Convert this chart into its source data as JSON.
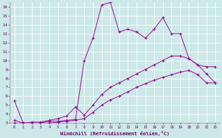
{
  "title": "",
  "xlabel": "Windchill (Refroidissement éolien,°C)",
  "background_color": "#cce8e8",
  "grid_color": "#ffffff",
  "line_color": "#990099",
  "tick_color": "#660066",
  "xlim": [
    -0.5,
    23.5
  ],
  "ylim": [
    3,
    16.5
  ],
  "yticks": [
    3,
    4,
    5,
    6,
    7,
    8,
    9,
    10,
    11,
    12,
    13,
    14,
    15,
    16
  ],
  "xticks": [
    0,
    1,
    2,
    3,
    4,
    5,
    6,
    7,
    8,
    9,
    10,
    11,
    12,
    13,
    14,
    15,
    16,
    17,
    18,
    19,
    20,
    21,
    22,
    23
  ],
  "series": [
    {
      "x": [
        0,
        1,
        2,
        3,
        4,
        5,
        6,
        7,
        8,
        9,
        10,
        11,
        12,
        13,
        14,
        15,
        16,
        17,
        18,
        19,
        20,
        21,
        22,
        23
      ],
      "y": [
        5.5,
        3.0,
        3.0,
        3.0,
        3.2,
        3.2,
        3.3,
        3.4,
        10.0,
        12.5,
        16.2,
        16.5,
        13.2,
        13.5,
        13.2,
        12.5,
        13.5,
        14.8,
        13.0,
        13.0,
        10.2,
        9.5,
        9.3,
        9.3
      ]
    },
    {
      "x": [
        0,
        1,
        2,
        3,
        4,
        5,
        6,
        7,
        8,
        9,
        10,
        11,
        12,
        13,
        14,
        15,
        16,
        17,
        18,
        19,
        20,
        21,
        22,
        23
      ],
      "y": [
        3.3,
        3.0,
        3.1,
        3.1,
        3.3,
        3.5,
        3.8,
        4.8,
        3.9,
        5.0,
        6.2,
        7.0,
        7.5,
        8.0,
        8.5,
        9.0,
        9.5,
        10.0,
        10.5,
        10.5,
        10.2,
        9.5,
        8.5,
        7.5
      ],
      "marker": "D"
    },
    {
      "x": [
        0,
        1,
        2,
        3,
        4,
        5,
        6,
        7,
        8,
        9,
        10,
        11,
        12,
        13,
        14,
        15,
        16,
        17,
        18,
        19,
        20,
        21,
        22,
        23
      ],
      "y": [
        3.0,
        3.0,
        3.0,
        3.0,
        3.0,
        3.1,
        3.2,
        3.3,
        3.5,
        4.2,
        5.0,
        5.6,
        6.0,
        6.5,
        7.0,
        7.4,
        7.8,
        8.1,
        8.4,
        8.7,
        8.9,
        8.4,
        7.5,
        7.5
      ],
      "marker": "D"
    }
  ]
}
